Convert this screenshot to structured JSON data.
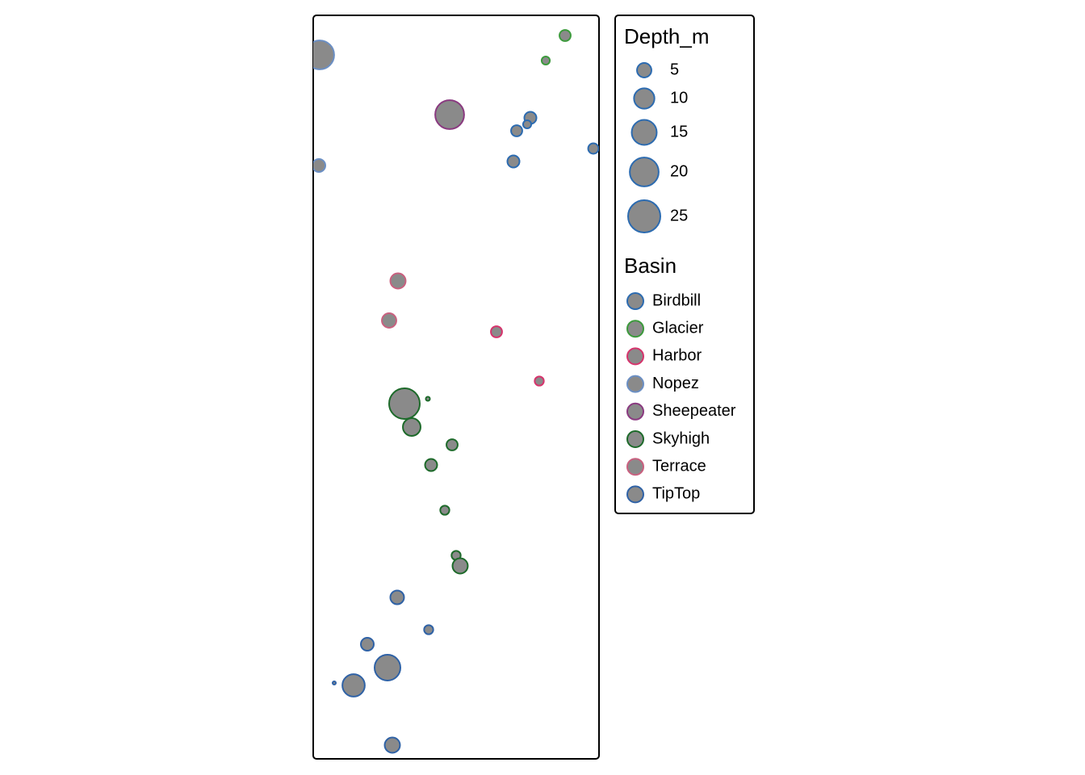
{
  "chart_data": {
    "type": "bubble",
    "xlim": [
      0,
      354
    ],
    "ylim": [
      0,
      921
    ],
    "size_legend": {
      "title": "Depth_m",
      "values": [
        5,
        10,
        15,
        20,
        25
      ]
    },
    "legend_title": "Basin",
    "series": [
      {
        "name": "Birdbill",
        "color": "#2c6bb0",
        "x": [
          269,
          252,
          265,
          347,
          248
        ],
        "y": [
          794,
          778,
          786,
          756,
          740
        ],
        "values": [
          3.5,
          3,
          1.6,
          2.6,
          3.5
        ]
      },
      {
        "name": "Glacier",
        "color": "#3c9a3c",
        "x": [
          312,
          288
        ],
        "y": [
          896,
          865
        ],
        "values": [
          3,
          1.6
        ]
      },
      {
        "name": "Harbor",
        "color": "#d6336c",
        "x": [
          227,
          280
        ],
        "y": [
          529,
          468
        ],
        "values": [
          3,
          2
        ]
      },
      {
        "name": "Nopez",
        "color": "#6b8fc4",
        "x": [
          8,
          7
        ],
        "y": [
          872,
          735
        ],
        "values": [
          20,
          4
        ]
      },
      {
        "name": "Sheepeater",
        "color": "#8a3a80",
        "x": [
          169
        ],
        "y": [
          798
        ],
        "values": [
          20
        ]
      },
      {
        "name": "Skyhigh",
        "color": "#1d6a2a",
        "x": [
          113,
          142,
          122,
          172,
          146,
          163,
          177,
          182
        ],
        "y": [
          440,
          446,
          411,
          389,
          364,
          308,
          252,
          239
        ],
        "values": [
          22.5,
          0.4,
          7.5,
          3,
          3.5,
          2,
          2,
          5.6
        ]
      },
      {
        "name": "Terrace",
        "color": "#c9607f",
        "x": [
          105,
          94
        ],
        "y": [
          592,
          543
        ],
        "values": [
          5.6,
          5
        ]
      },
      {
        "name": "TipTop",
        "color": "#2f62a6",
        "x": [
          104,
          143,
          67,
          92,
          26,
          50,
          98
        ],
        "y": [
          200,
          160,
          142,
          113,
          94,
          91,
          17
        ],
        "values": [
          4.5,
          2,
          4,
          16,
          0.25,
          12,
          5.6
        ]
      }
    ]
  }
}
